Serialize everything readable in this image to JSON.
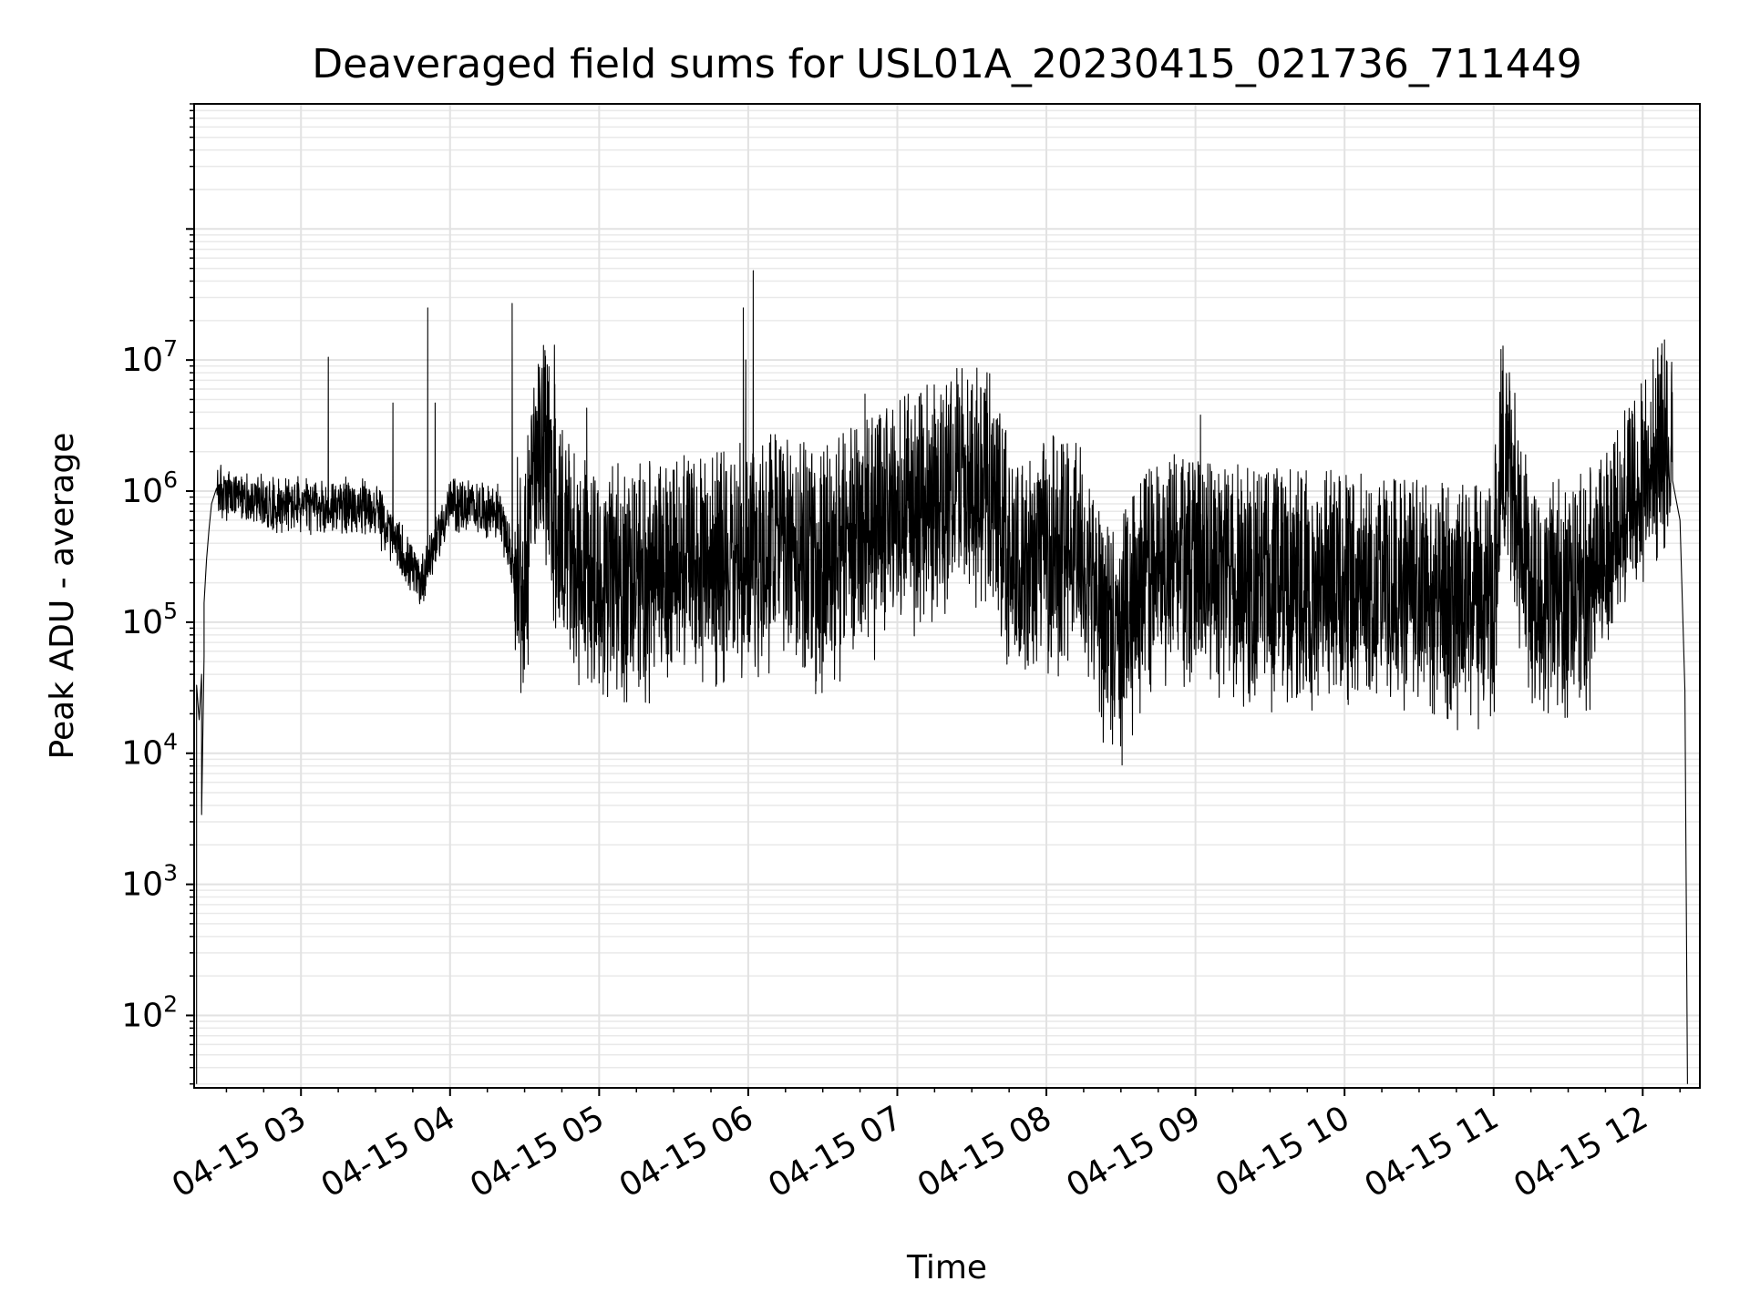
{
  "chart_data": {
    "type": "line",
    "title": "Deaveraged field sums for USL01A_20230415_021736_711449",
    "xlabel": "Time",
    "ylabel": "Peak ADU - average",
    "x_axis": {
      "kind": "datetime",
      "range": [
        "2023-04-15 02:17:00",
        "2023-04-15 12:23:00"
      ],
      "ticks": [
        "04-15 03",
        "04-15 04",
        "04-15 05",
        "04-15 06",
        "04-15 07",
        "04-15 08",
        "04-15 09",
        "04-15 10",
        "04-15 11",
        "04-15 12"
      ]
    },
    "y_axis": {
      "scale": "log",
      "range": [
        28,
        900000000
      ],
      "ticks": [
        {
          "base": "10",
          "exp": "2",
          "value": 100
        },
        {
          "base": "10",
          "exp": "3",
          "value": 1000
        },
        {
          "base": "10",
          "exp": "4",
          "value": 10000
        },
        {
          "base": "10",
          "exp": "5",
          "value": 100000
        },
        {
          "base": "10",
          "exp": "6",
          "value": 1000000
        },
        {
          "base": "10",
          "exp": "7",
          "value": 10000000
        }
      ]
    },
    "grid": "major and minor, light gray",
    "line_color": "#000000",
    "series": [
      {
        "points": [
          [
            "2023-04-15 02:18",
            30
          ],
          [
            "2023-04-15 02:18",
            33000
          ],
          [
            "2023-04-15 02:19",
            18000
          ],
          [
            "2023-04-15 02:20",
            40000
          ],
          [
            "2023-04-15 02:20",
            3400
          ],
          [
            "2023-04-15 02:21",
            55000
          ],
          [
            "2023-04-15 02:21",
            140000
          ],
          [
            "2023-04-15 02:22",
            300000
          ],
          [
            "2023-04-15 02:23",
            520000
          ],
          [
            "2023-04-15 02:24",
            800000
          ],
          [
            "2023-04-15 02:26",
            1050000
          ],
          [
            "2023-04-15 02:30",
            900000
          ],
          [
            "2023-04-15 02:40",
            850000
          ],
          [
            "2023-04-15 02:50",
            800000
          ],
          [
            "2023-04-15 03:00",
            780000
          ],
          [
            "2023-04-15 03:11",
            10500000
          ],
          [
            "2023-04-15 03:20",
            750000
          ],
          [
            "2023-04-15 03:30",
            720000
          ],
          [
            "2023-04-15 03:37",
            4700000
          ],
          [
            "2023-04-15 03:48",
            200000
          ],
          [
            "2023-04-15 03:51",
            25000000
          ],
          [
            "2023-04-15 03:54",
            4700000
          ],
          [
            "2023-04-15 04:00",
            800000
          ],
          [
            "2023-04-15 04:10",
            750000
          ],
          [
            "2023-04-15 04:20",
            700000
          ],
          [
            "2023-04-15 04:25",
            27000000
          ],
          [
            "2023-04-15 04:27",
            200000
          ],
          [
            "2023-04-15 04:30",
            120000
          ],
          [
            "2023-04-15 04:35",
            1800000
          ],
          [
            "2023-04-15 04:42",
            13000000
          ],
          [
            "2023-04-15 04:50",
            180000
          ],
          [
            "2023-04-15 04:55",
            4300000
          ],
          [
            "2023-04-15 05:00",
            150000
          ],
          [
            "2023-04-15 05:15",
            160000
          ],
          [
            "2023-04-15 05:30",
            170000
          ],
          [
            "2023-04-15 05:45",
            180000
          ],
          [
            "2023-04-15 05:58",
            25000000
          ],
          [
            "2023-04-15 05:59",
            10000000
          ],
          [
            "2023-04-15 06:02",
            48000000
          ],
          [
            "2023-04-15 06:10",
            250000
          ],
          [
            "2023-04-15 06:30",
            200000
          ],
          [
            "2023-04-15 06:47",
            5500000
          ],
          [
            "2023-04-15 07:00",
            450000
          ],
          [
            "2023-04-15 07:25",
            4800000
          ],
          [
            "2023-04-15 07:35",
            1000000
          ],
          [
            "2023-04-15 07:45",
            220000
          ],
          [
            "2023-04-15 08:00",
            250000
          ],
          [
            "2023-04-15 08:15",
            200000
          ],
          [
            "2023-04-15 08:26",
            41000
          ],
          [
            "2023-04-15 08:45",
            180000
          ],
          [
            "2023-04-15 09:00",
            160000
          ],
          [
            "2023-04-15 09:02",
            3800000
          ],
          [
            "2023-04-15 09:15",
            150000
          ],
          [
            "2023-04-15 09:30",
            140000
          ],
          [
            "2023-04-15 09:45",
            130000
          ],
          [
            "2023-04-15 10:00",
            130000
          ],
          [
            "2023-04-15 10:15",
            120000
          ],
          [
            "2023-04-15 10:30",
            110000
          ],
          [
            "2023-04-15 10:45",
            100000
          ],
          [
            "2023-04-15 11:00",
            100000
          ],
          [
            "2023-04-15 11:03",
            2000000
          ],
          [
            "2023-04-15 11:15",
            110000
          ],
          [
            "2023-04-15 11:30",
            120000
          ],
          [
            "2023-04-15 11:40",
            150000
          ],
          [
            "2023-04-15 11:50",
            300000
          ],
          [
            "2023-04-15 12:00",
            700000
          ],
          [
            "2023-04-15 12:05",
            1100000
          ],
          [
            "2023-04-15 12:09",
            1400000
          ],
          [
            "2023-04-15 12:09",
            4300000
          ],
          [
            "2023-04-15 12:12",
            1200000
          ],
          [
            "2023-04-15 12:15",
            600000
          ],
          [
            "2023-04-15 12:17",
            30000
          ],
          [
            "2023-04-15 12:18",
            30
          ]
        ]
      }
    ]
  }
}
